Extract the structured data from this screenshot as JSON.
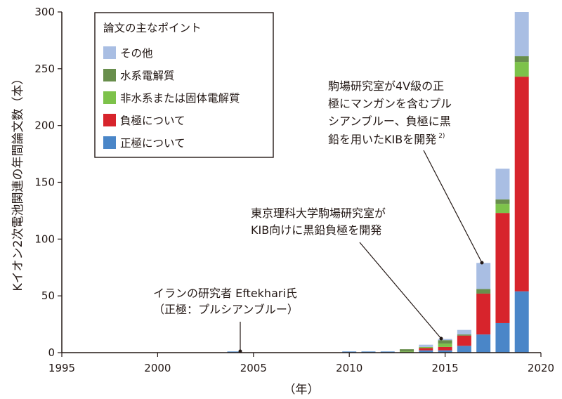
{
  "chart_data": {
    "type": "bar",
    "stacked": true,
    "x": [
      1995,
      1996,
      1997,
      1998,
      1999,
      2000,
      2001,
      2002,
      2003,
      2004,
      2005,
      2006,
      2007,
      2008,
      2009,
      2010,
      2011,
      2012,
      2013,
      2014,
      2015,
      2016,
      2017,
      2018,
      2019
    ],
    "series": [
      {
        "name": "正極について",
        "color": "#4a86c8",
        "values": [
          0,
          0,
          0,
          0,
          0,
          0,
          0,
          0,
          0,
          1,
          0,
          0,
          0,
          0,
          0,
          1,
          1,
          1,
          0,
          2,
          2,
          6,
          16,
          26,
          54
        ]
      },
      {
        "name": "負極について",
        "color": "#d7242c",
        "values": [
          0,
          0,
          0,
          0,
          0,
          0,
          0,
          0,
          0,
          0,
          0,
          0,
          0,
          0,
          0,
          0,
          0,
          0,
          0,
          2,
          3,
          9,
          36,
          97,
          189
        ]
      },
      {
        "name": "非水系または固体電解質",
        "color": "#7dc24a",
        "values": [
          0,
          0,
          0,
          0,
          0,
          0,
          0,
          0,
          0,
          0,
          0,
          0,
          0,
          0,
          0,
          0,
          0,
          0,
          1,
          1,
          3,
          0,
          0,
          8,
          13
        ]
      },
      {
        "name": "水系電解質",
        "color": "#688e4c",
        "values": [
          0,
          0,
          0,
          0,
          0,
          0,
          0,
          0,
          0,
          0,
          0,
          0,
          0,
          0,
          0,
          0,
          0,
          0,
          2,
          0,
          3,
          1,
          4,
          4,
          5
        ]
      },
      {
        "name": "その他",
        "color": "#a9bee3",
        "values": [
          0,
          0,
          0,
          0,
          0,
          0,
          0,
          0,
          0,
          0,
          0,
          0,
          0,
          0,
          0,
          0,
          0,
          0,
          0,
          2,
          1,
          4,
          23,
          27,
          39
        ]
      }
    ],
    "xlim": [
      1995,
      2020
    ],
    "xticks": [
      "1995",
      "2000",
      "2005",
      "2010",
      "2015",
      "2020"
    ],
    "ylim": [
      0,
      300
    ],
    "yticks": [
      "0",
      "50",
      "100",
      "150",
      "200",
      "250",
      "300"
    ],
    "xlabel": "（年）",
    "ylabel": "Kイオン2次電池関連の年間論文数（本）",
    "legend": {
      "title": "論文の主なポイント",
      "items": [
        "その他",
        "水系電解質",
        "非水系または固体電解質",
        "負極について",
        "正極について"
      ],
      "placement": "top-left"
    },
    "annotations": [
      {
        "lines": [
          "イランの研究者 Eftekhari氏",
          "（正極：プルシアンブルー）"
        ],
        "year": 2004
      },
      {
        "lines": [
          "東京理科大学駒場研究室が",
          "KIB向けに黒鉛負極を開発"
        ],
        "year": 2015
      },
      {
        "lines": [
          "駒場研究室が4V級の正",
          "極にマンガンを含むプル",
          "シアンブルー、負極に黒",
          "鉛を用いたKIBを開発"
        ],
        "superscript": "2)",
        "year": 2017
      }
    ],
    "grid": false
  }
}
